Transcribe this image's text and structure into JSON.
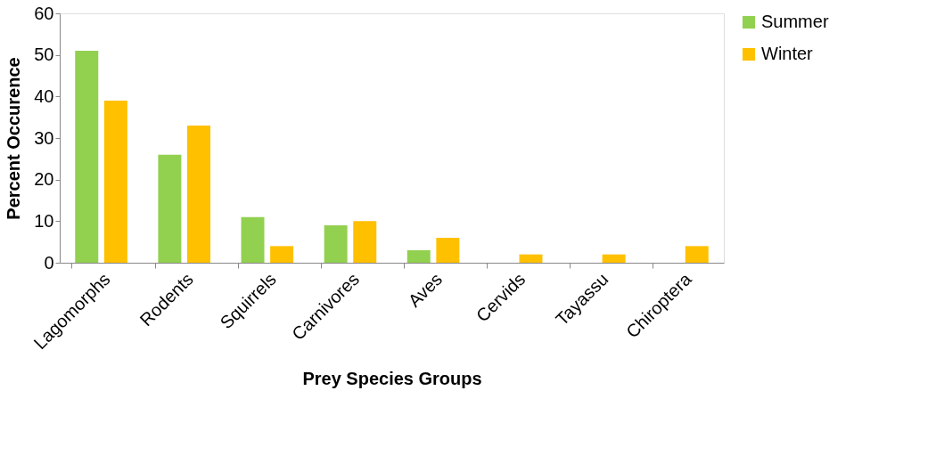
{
  "chart_data": {
    "type": "bar",
    "categories": [
      "Lagomorphs",
      "Rodents",
      "Squirrels",
      "Carnivores",
      "Aves",
      "Cervids",
      "Tayassu",
      "Chiroptera"
    ],
    "series": [
      {
        "name": "Summer",
        "color": "#92d050",
        "values": [
          51,
          26,
          11,
          9,
          3,
          0,
          0,
          0
        ]
      },
      {
        "name": "Winter",
        "color": "#ffc000",
        "values": [
          39,
          33,
          4,
          10,
          6,
          2,
          2,
          4
        ]
      }
    ],
    "xlabel": "Prey Species Groups",
    "ylabel": "Percent Occurence",
    "ylim": [
      0,
      60
    ],
    "yticks": [
      0,
      10,
      20,
      30,
      40,
      50,
      60
    ],
    "grid": false,
    "legend": "right"
  }
}
